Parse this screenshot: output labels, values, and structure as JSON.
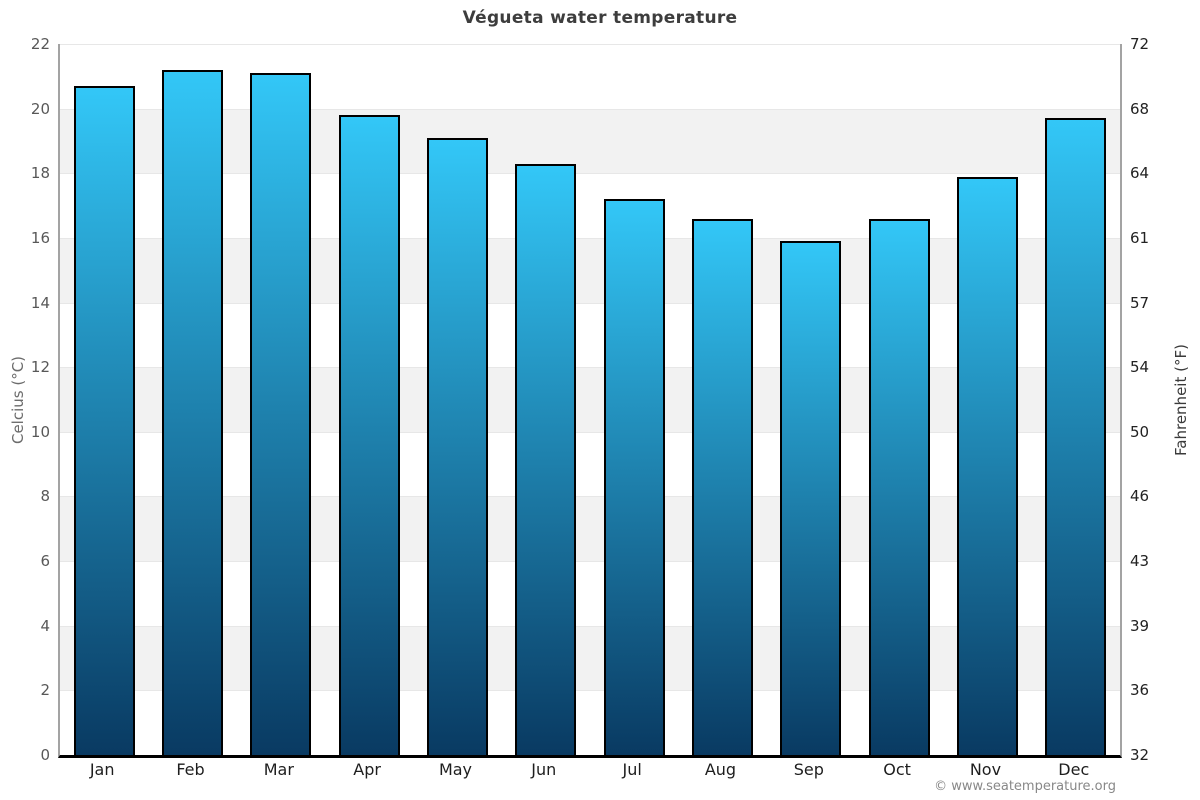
{
  "title": "Végueta water temperature",
  "copyright": "© www.seatemperature.org",
  "chart_data": {
    "type": "bar",
    "title": "Végueta water temperature",
    "categories": [
      "Jan",
      "Feb",
      "Mar",
      "Apr",
      "May",
      "Jun",
      "Jul",
      "Aug",
      "Sep",
      "Oct",
      "Nov",
      "Dec"
    ],
    "values": [
      20.7,
      21.2,
      21.1,
      19.8,
      19.1,
      18.3,
      17.2,
      16.6,
      15.9,
      16.6,
      17.9,
      19.7
    ],
    "unit": "°C",
    "ylabel_left": "Celcius (°C)",
    "ylabel_right": "Fahrenheit (°F)",
    "ylim_celsius": [
      0,
      22
    ],
    "yticks_celsius": [
      22,
      20,
      18,
      16,
      14,
      12,
      10,
      8,
      6,
      4,
      2,
      0
    ],
    "yticks_fahrenheit": [
      72,
      68,
      64,
      61,
      57,
      54,
      50,
      46,
      43,
      39,
      36,
      32
    ],
    "legend": false,
    "grid": "alternating horizontal bands every 2°C",
    "colors": {
      "bar_gradient_top": "#33c7f7",
      "bar_gradient_bottom": "#093a62",
      "bar_border": "#000000",
      "band_gray": "#f2f2f2",
      "band_white": "#ffffff",
      "gridline": "#e7e7e7",
      "axis_side_line": "#a3a3a3",
      "axis_baseline": "#000000",
      "tick_label_left": "#585858",
      "tick_label_right": "#222222",
      "month_label": "#1e1e1e",
      "title_color": "#3d3d3d",
      "copyright_color": "#888888"
    }
  }
}
